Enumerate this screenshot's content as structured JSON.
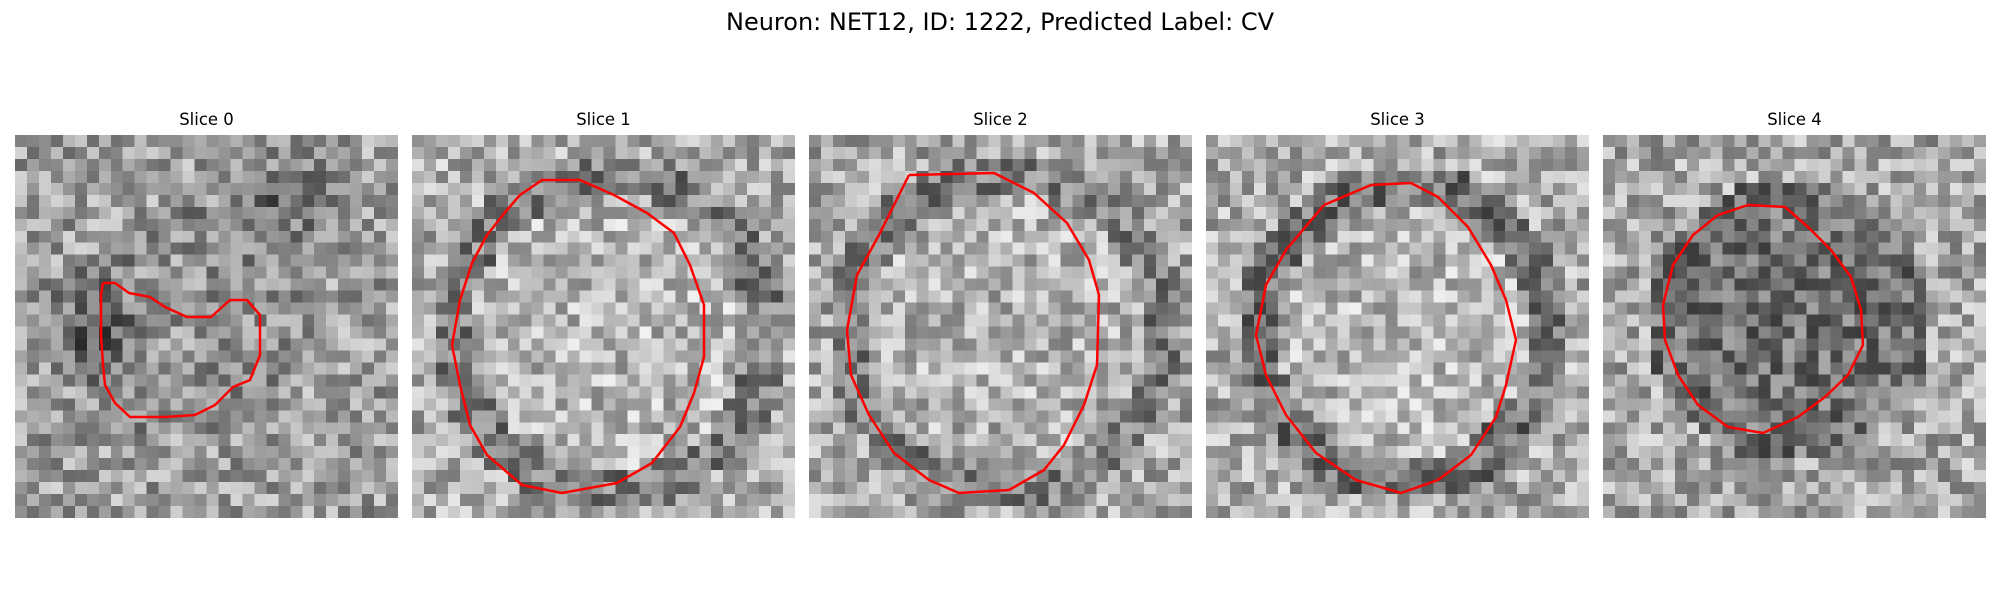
{
  "figure": {
    "title": "Neuron: NET12, ID: 1222, Predicted Label: CV"
  },
  "slices": [
    {
      "label": "Slice 0"
    },
    {
      "label": "Slice 1"
    },
    {
      "label": "Slice 2"
    },
    {
      "label": "Slice 3"
    },
    {
      "label": "Slice 4"
    }
  ],
  "colors": {
    "contour": "#ff0000",
    "colormap": "gray"
  }
}
